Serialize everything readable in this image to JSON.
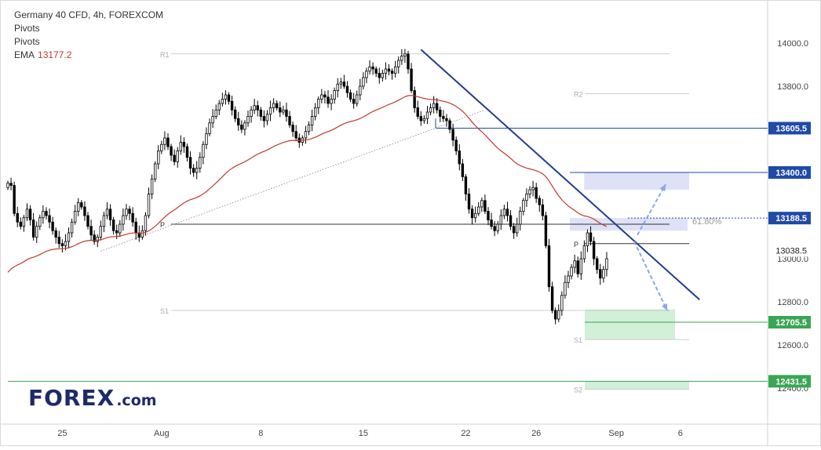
{
  "legend": {
    "title": "Germany 40 CFD, 4h, FOREXCOM",
    "line2": "Pivots",
    "line3": "Pivots",
    "ema_label": "EMA",
    "ema_value": "13177.2"
  },
  "logo": {
    "text_main": "FOREX",
    "text_suffix": ".com"
  },
  "colors": {
    "bull": "#ffffff",
    "bear": "#000000",
    "ema": "#c0392b",
    "trend": "#1f3c8f",
    "support": "#3aa655",
    "level_blue": "#1f4aa8",
    "zone_blue": "#c5cbef",
    "zone_green": "#bfe8c8",
    "arrow": "#8aa6f0",
    "pivot_grey": "#bfbfbf"
  },
  "chart_data": {
    "type": "candlestick",
    "title": "Germany 40 CFD, 4h, FOREXCOM",
    "ylim": [
      12250,
      14200
    ],
    "y_ticks": [
      "14000.0",
      "13800.0",
      "13600.0",
      "13400.0",
      "13200.0",
      "13000.0",
      "12800.0",
      "12600.0",
      "12400.0"
    ],
    "y_tick_values": [
      14000,
      13800,
      13600,
      13400,
      13200,
      13000,
      12800,
      12600,
      12400
    ],
    "x_labels": [
      {
        "label": "25",
        "bar": 17
      },
      {
        "label": "Aug",
        "bar": 48
      },
      {
        "label": "8",
        "bar": 79
      },
      {
        "label": "15",
        "bar": 111
      },
      {
        "label": "22",
        "bar": 143
      },
      {
        "label": "26",
        "bar": 165
      },
      {
        "label": "Sep",
        "bar": 190
      },
      {
        "label": "6",
        "bar": 210
      }
    ],
    "closes": [
      13350,
      13340,
      13210,
      13170,
      13150,
      13190,
      13230,
      13180,
      13100,
      13150,
      13190,
      13220,
      13200,
      13170,
      13130,
      13100,
      13070,
      13060,
      13080,
      13120,
      13170,
      13220,
      13260,
      13240,
      13200,
      13150,
      13110,
      13080,
      13100,
      13150,
      13200,
      13230,
      13180,
      13130,
      13120,
      13160,
      13200,
      13230,
      13210,
      13170,
      13120,
      13100,
      13130,
      13200,
      13300,
      13370,
      13440,
      13500,
      13530,
      13560,
      13520,
      13480,
      13450,
      13500,
      13540,
      13520,
      13470,
      13420,
      13400,
      13420,
      13470,
      13530,
      13580,
      13630,
      13660,
      13690,
      13720,
      13740,
      13760,
      13730,
      13690,
      13650,
      13620,
      13600,
      13630,
      13660,
      13690,
      13710,
      13690,
      13660,
      13640,
      13670,
      13700,
      13720,
      13700,
      13680,
      13690,
      13660,
      13620,
      13590,
      13560,
      13540,
      13560,
      13590,
      13620,
      13660,
      13700,
      13740,
      13760,
      13750,
      13720,
      13740,
      13780,
      13810,
      13820,
      13800,
      13770,
      13740,
      13720,
      13760,
      13800,
      13840,
      13870,
      13890,
      13880,
      13860,
      13840,
      13860,
      13880,
      13870,
      13860,
      13890,
      13920,
      13940,
      13950,
      13880,
      13780,
      13700,
      13660,
      13640,
      13650,
      13680,
      13700,
      13720,
      13690,
      13660,
      13650,
      13640,
      13600,
      13550,
      13500,
      13440,
      13380,
      13300,
      13230,
      13190,
      13210,
      13240,
      13270,
      13220,
      13180,
      13150,
      13130,
      13160,
      13200,
      13230,
      13200,
      13150,
      13120,
      13160,
      13220,
      13270,
      13300,
      13320,
      13330,
      13280,
      13250,
      13200,
      13060,
      12870,
      12760,
      12720,
      12760,
      12830,
      12890,
      12920,
      12960,
      12990,
      12930,
      13000,
      13060,
      13120,
      13080,
      13000,
      12950,
      12910,
      12950,
      13000
    ],
    "ema_start_value": 12920,
    "ema_last_value": 13177.2,
    "levels": [
      {
        "label": "13605.5",
        "value": 13605.5
      },
      {
        "label": "13400.0",
        "value": 13400.0
      },
      {
        "label": "13188.5",
        "value": 13188.5
      },
      {
        "label": "13038.5",
        "value": 13038.5
      },
      {
        "label": "12705.5",
        "value": 12705.5
      },
      {
        "label": "12431.5",
        "value": 12431.5
      }
    ],
    "pivots_old": [
      {
        "label": "R1",
        "value": 13950
      },
      {
        "label": "P",
        "value": 13160
      },
      {
        "label": "S1",
        "value": 12760
      }
    ],
    "pivots_new": [
      {
        "label": "R2",
        "value": 13765
      },
      {
        "label": "P",
        "value": 13070
      },
      {
        "label": "S1",
        "value": 12625
      },
      {
        "label": "S2",
        "value": 12395
      }
    ],
    "fib_label": "61.80%",
    "zones": [
      {
        "name": "upper-resistance-zone",
        "from": 13320,
        "to": 13400
      },
      {
        "name": "fib-zone",
        "from": 13130,
        "to": 13188.5
      },
      {
        "name": "support-zone",
        "from": 12625,
        "to": 12765
      },
      {
        "name": "lower-support-zone",
        "from": 12395,
        "to": 12431.5
      }
    ],
    "trendline": {
      "bar_from": 129,
      "value_from": 13970,
      "bar_to": 216,
      "value_to": 12810
    },
    "rising_line": {
      "bar_from": 29,
      "value_from": 13035,
      "bar_to": 149,
      "value_to": 13690
    }
  }
}
